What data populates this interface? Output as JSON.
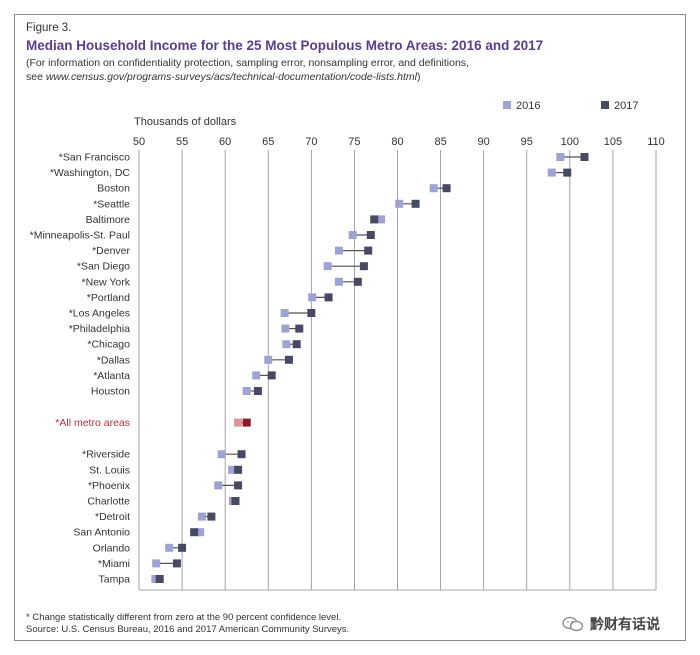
{
  "figure_label": "Figure 3.",
  "title": "Median Household Income for the 25 Most Populous Metro Areas: 2016 and 2017",
  "subtitle_line1": "(For information on confidentiality protection, sampling error, nonsampling error, and definitions,",
  "subtitle_line2_prefix": "see ",
  "subtitle_line2_url": "www.census.gov/programs-surveys/acs/technical-documentation/code-lists.html",
  "subtitle_line2_suffix": ")",
  "footnote": "* Change statistically different from zero at the 90 percent confidence level.",
  "source": "Source: U.S. Census Bureau, 2016 and 2017 American Community Surveys.",
  "watermark": "黔财有话说",
  "colors": {
    "series_2016": "#9ea3d1",
    "series_2017": "#474a62",
    "highlight_2016": "#d9979c",
    "highlight_2017": "#8c1a2b",
    "highlight_label": "#b23240",
    "grid": "#8e8e8e",
    "connector": "#555555"
  },
  "chart_data": {
    "type": "dot",
    "xlabel": "Thousands of dollars",
    "xlim": [
      50,
      110
    ],
    "xticks": [
      50,
      55,
      60,
      65,
      70,
      75,
      80,
      85,
      90,
      95,
      100,
      105,
      110
    ],
    "legend": {
      "position": "top-right",
      "entries": [
        "2016",
        "2017"
      ]
    },
    "grid": true,
    "series_names": [
      "2016",
      "2017"
    ],
    "rows": [
      {
        "label": "*San Francisco",
        "v2016": 98.9,
        "v2017": 101.7,
        "group": 0
      },
      {
        "label": "*Washington, DC",
        "v2016": 97.9,
        "v2017": 99.7,
        "group": 0
      },
      {
        "label": "Boston",
        "v2016": 84.2,
        "v2017": 85.7,
        "group": 0
      },
      {
        "label": "*Seattle",
        "v2016": 80.2,
        "v2017": 82.1,
        "group": 0
      },
      {
        "label": "Baltimore",
        "v2016": 78.1,
        "v2017": 77.3,
        "group": 0
      },
      {
        "label": "*Minneapolis-St. Paul",
        "v2016": 74.8,
        "v2017": 76.9,
        "group": 0
      },
      {
        "label": "*Denver",
        "v2016": 73.2,
        "v2017": 76.6,
        "group": 0
      },
      {
        "label": "*San Diego",
        "v2016": 71.9,
        "v2017": 76.1,
        "group": 0
      },
      {
        "label": "*New York",
        "v2016": 73.2,
        "v2017": 75.4,
        "group": 0
      },
      {
        "label": "*Portland",
        "v2016": 70.1,
        "v2017": 72.0,
        "group": 0
      },
      {
        "label": "*Los Angeles",
        "v2016": 66.9,
        "v2017": 70.0,
        "group": 0
      },
      {
        "label": "*Philadelphia",
        "v2016": 67.0,
        "v2017": 68.6,
        "group": 0
      },
      {
        "label": "*Chicago",
        "v2016": 67.1,
        "v2017": 68.3,
        "group": 0
      },
      {
        "label": "*Dallas",
        "v2016": 65.0,
        "v2017": 67.4,
        "group": 0
      },
      {
        "label": "*Atlanta",
        "v2016": 63.6,
        "v2017": 65.4,
        "group": 0
      },
      {
        "label": "Houston",
        "v2016": 62.5,
        "v2017": 63.8,
        "group": 0
      },
      {
        "label": "*All metro areas",
        "v2016": 61.5,
        "v2017": 62.5,
        "group": 1,
        "highlight": true
      },
      {
        "label": "*Riverside",
        "v2016": 59.6,
        "v2017": 61.9,
        "group": 2
      },
      {
        "label": "St. Louis",
        "v2016": 60.8,
        "v2017": 61.5,
        "group": 2
      },
      {
        "label": "*Phoenix",
        "v2016": 59.2,
        "v2017": 61.5,
        "group": 2
      },
      {
        "label": "Charlotte",
        "v2016": 60.9,
        "v2017": 61.2,
        "group": 2
      },
      {
        "label": "*Detroit",
        "v2016": 57.3,
        "v2017": 58.4,
        "group": 2
      },
      {
        "label": "San Antonio",
        "v2016": 57.1,
        "v2017": 56.4,
        "group": 2
      },
      {
        "label": "Orlando",
        "v2016": 53.5,
        "v2017": 55.0,
        "group": 2
      },
      {
        "label": "*Miami",
        "v2016": 52.0,
        "v2017": 54.4,
        "group": 2
      },
      {
        "label": "Tampa",
        "v2016": 51.9,
        "v2017": 52.4,
        "group": 2
      }
    ]
  }
}
